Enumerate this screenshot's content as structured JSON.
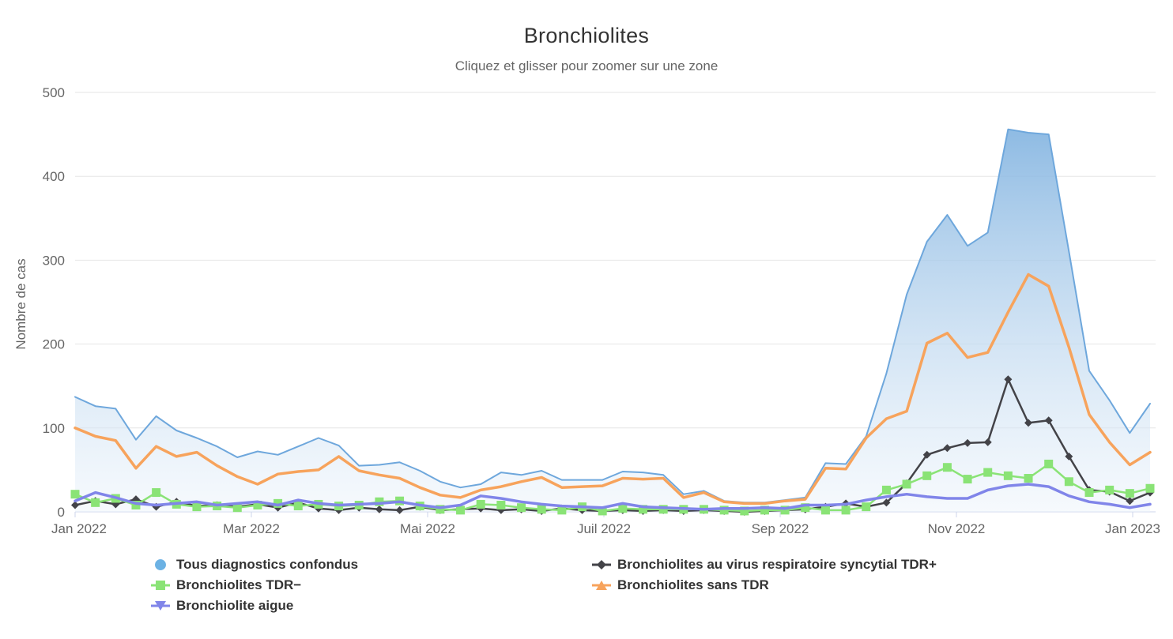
{
  "chart": {
    "title": "Bronchiolites",
    "subtitle": "Cliquez et glisser pour zoomer sur une zone",
    "y_axis_title": "Nombre de cas"
  },
  "chart_data": {
    "type": "area",
    "x_unit": "week",
    "x_axis_ticks": [
      "Jan 2022",
      "Mar 2022",
      "Mai 2022",
      "Juil 2022",
      "Sep 2022",
      "Nov 2022",
      "Jan 2023"
    ],
    "y_axis_ticks": [
      0,
      100,
      200,
      300,
      400,
      500
    ],
    "ylim": [
      0,
      500
    ],
    "grid": "horizontal",
    "legend_position": "bottom",
    "colors": {
      "area_line": "#6ea7dc",
      "area_fill_top": "#79aede",
      "area_fill_bottom": "#edf4fb",
      "axis_line": "#ccd6eb",
      "gridline": "#e6e6e6",
      "label": "#666666",
      "legend_text": "#333333"
    },
    "series": [
      {
        "name": "Tous diagnostics confondus",
        "type": "area",
        "color": "#6ea7dc",
        "legend_marker": "circle",
        "chart_marker": "none",
        "line_width": 2,
        "values": [
          137,
          126,
          123,
          86,
          114,
          97,
          88,
          78,
          65,
          72,
          68,
          78,
          88,
          79,
          55,
          56,
          59,
          49,
          36,
          29,
          33,
          47,
          44,
          49,
          38,
          38,
          38,
          48,
          47,
          44,
          21,
          25,
          13,
          11,
          11,
          14,
          17,
          58,
          57,
          90,
          165,
          259,
          322,
          354,
          317,
          333,
          456,
          452,
          450,
          310,
          168,
          133,
          94,
          129
        ]
      },
      {
        "name": "Bronchiolites au virus respiratoire syncytial TDR+",
        "type": "line",
        "color": "#434348",
        "legend_marker": "diamond",
        "chart_marker": "diamond",
        "line_width": 2.5,
        "values": [
          8,
          13,
          9,
          15,
          6,
          12,
          7,
          8,
          6,
          9,
          5,
          11,
          4,
          2,
          5,
          3,
          2,
          6,
          2,
          3,
          4,
          2,
          3,
          1,
          4,
          2,
          1,
          2,
          1,
          2,
          1,
          2,
          1,
          0,
          1,
          2,
          3,
          6,
          10,
          6,
          11,
          34,
          68,
          76,
          82,
          83,
          158,
          106,
          109,
          66,
          26,
          24,
          13,
          23
        ]
      },
      {
        "name": "Bronchiolites TDR−",
        "type": "line",
        "color": "#8ae376",
        "legend_marker": "square",
        "chart_marker": "square",
        "line_width": 2.5,
        "values": [
          21,
          11,
          16,
          8,
          23,
          9,
          6,
          7,
          5,
          8,
          10,
          7,
          9,
          7,
          8,
          12,
          13,
          7,
          3,
          2,
          9,
          8,
          5,
          3,
          2,
          6,
          1,
          4,
          3,
          3,
          3,
          3,
          2,
          1,
          2,
          2,
          5,
          2,
          2,
          6,
          26,
          33,
          43,
          53,
          39,
          47,
          43,
          40,
          57,
          36,
          23,
          26,
          22,
          28
        ]
      },
      {
        "name": "Bronchiolites sans TDR",
        "type": "line",
        "color": "#f7a35c",
        "legend_marker": "triangle-up",
        "chart_marker": "none",
        "line_width": 3.5,
        "values": [
          100,
          90,
          85,
          52,
          78,
          66,
          71,
          55,
          42,
          33,
          45,
          48,
          50,
          66,
          49,
          44,
          40,
          29,
          20,
          17,
          26,
          30,
          36,
          41,
          29,
          30,
          31,
          40,
          39,
          40,
          17,
          23,
          12,
          10,
          10,
          13,
          15,
          52,
          51,
          88,
          111,
          120,
          201,
          213,
          184,
          190,
          238,
          283,
          269,
          196,
          116,
          83,
          56,
          71
        ]
      },
      {
        "name": "Bronchiolite aigue",
        "type": "line",
        "color": "#8085e9",
        "legend_marker": "triangle-down",
        "chart_marker": "none",
        "line_width": 3.5,
        "values": [
          13,
          23,
          17,
          10,
          8,
          10,
          12,
          8,
          10,
          12,
          8,
          14,
          10,
          8,
          9,
          10,
          12,
          8,
          5,
          8,
          19,
          16,
          12,
          9,
          7,
          6,
          5,
          10,
          6,
          5,
          4,
          3,
          4,
          4,
          5,
          4,
          8,
          8,
          9,
          14,
          18,
          21,
          18,
          16,
          16,
          26,
          31,
          33,
          30,
          19,
          12,
          9,
          5,
          9
        ]
      }
    ],
    "legend_columns": [
      [
        0,
        2,
        4
      ],
      [
        1,
        3
      ]
    ]
  }
}
